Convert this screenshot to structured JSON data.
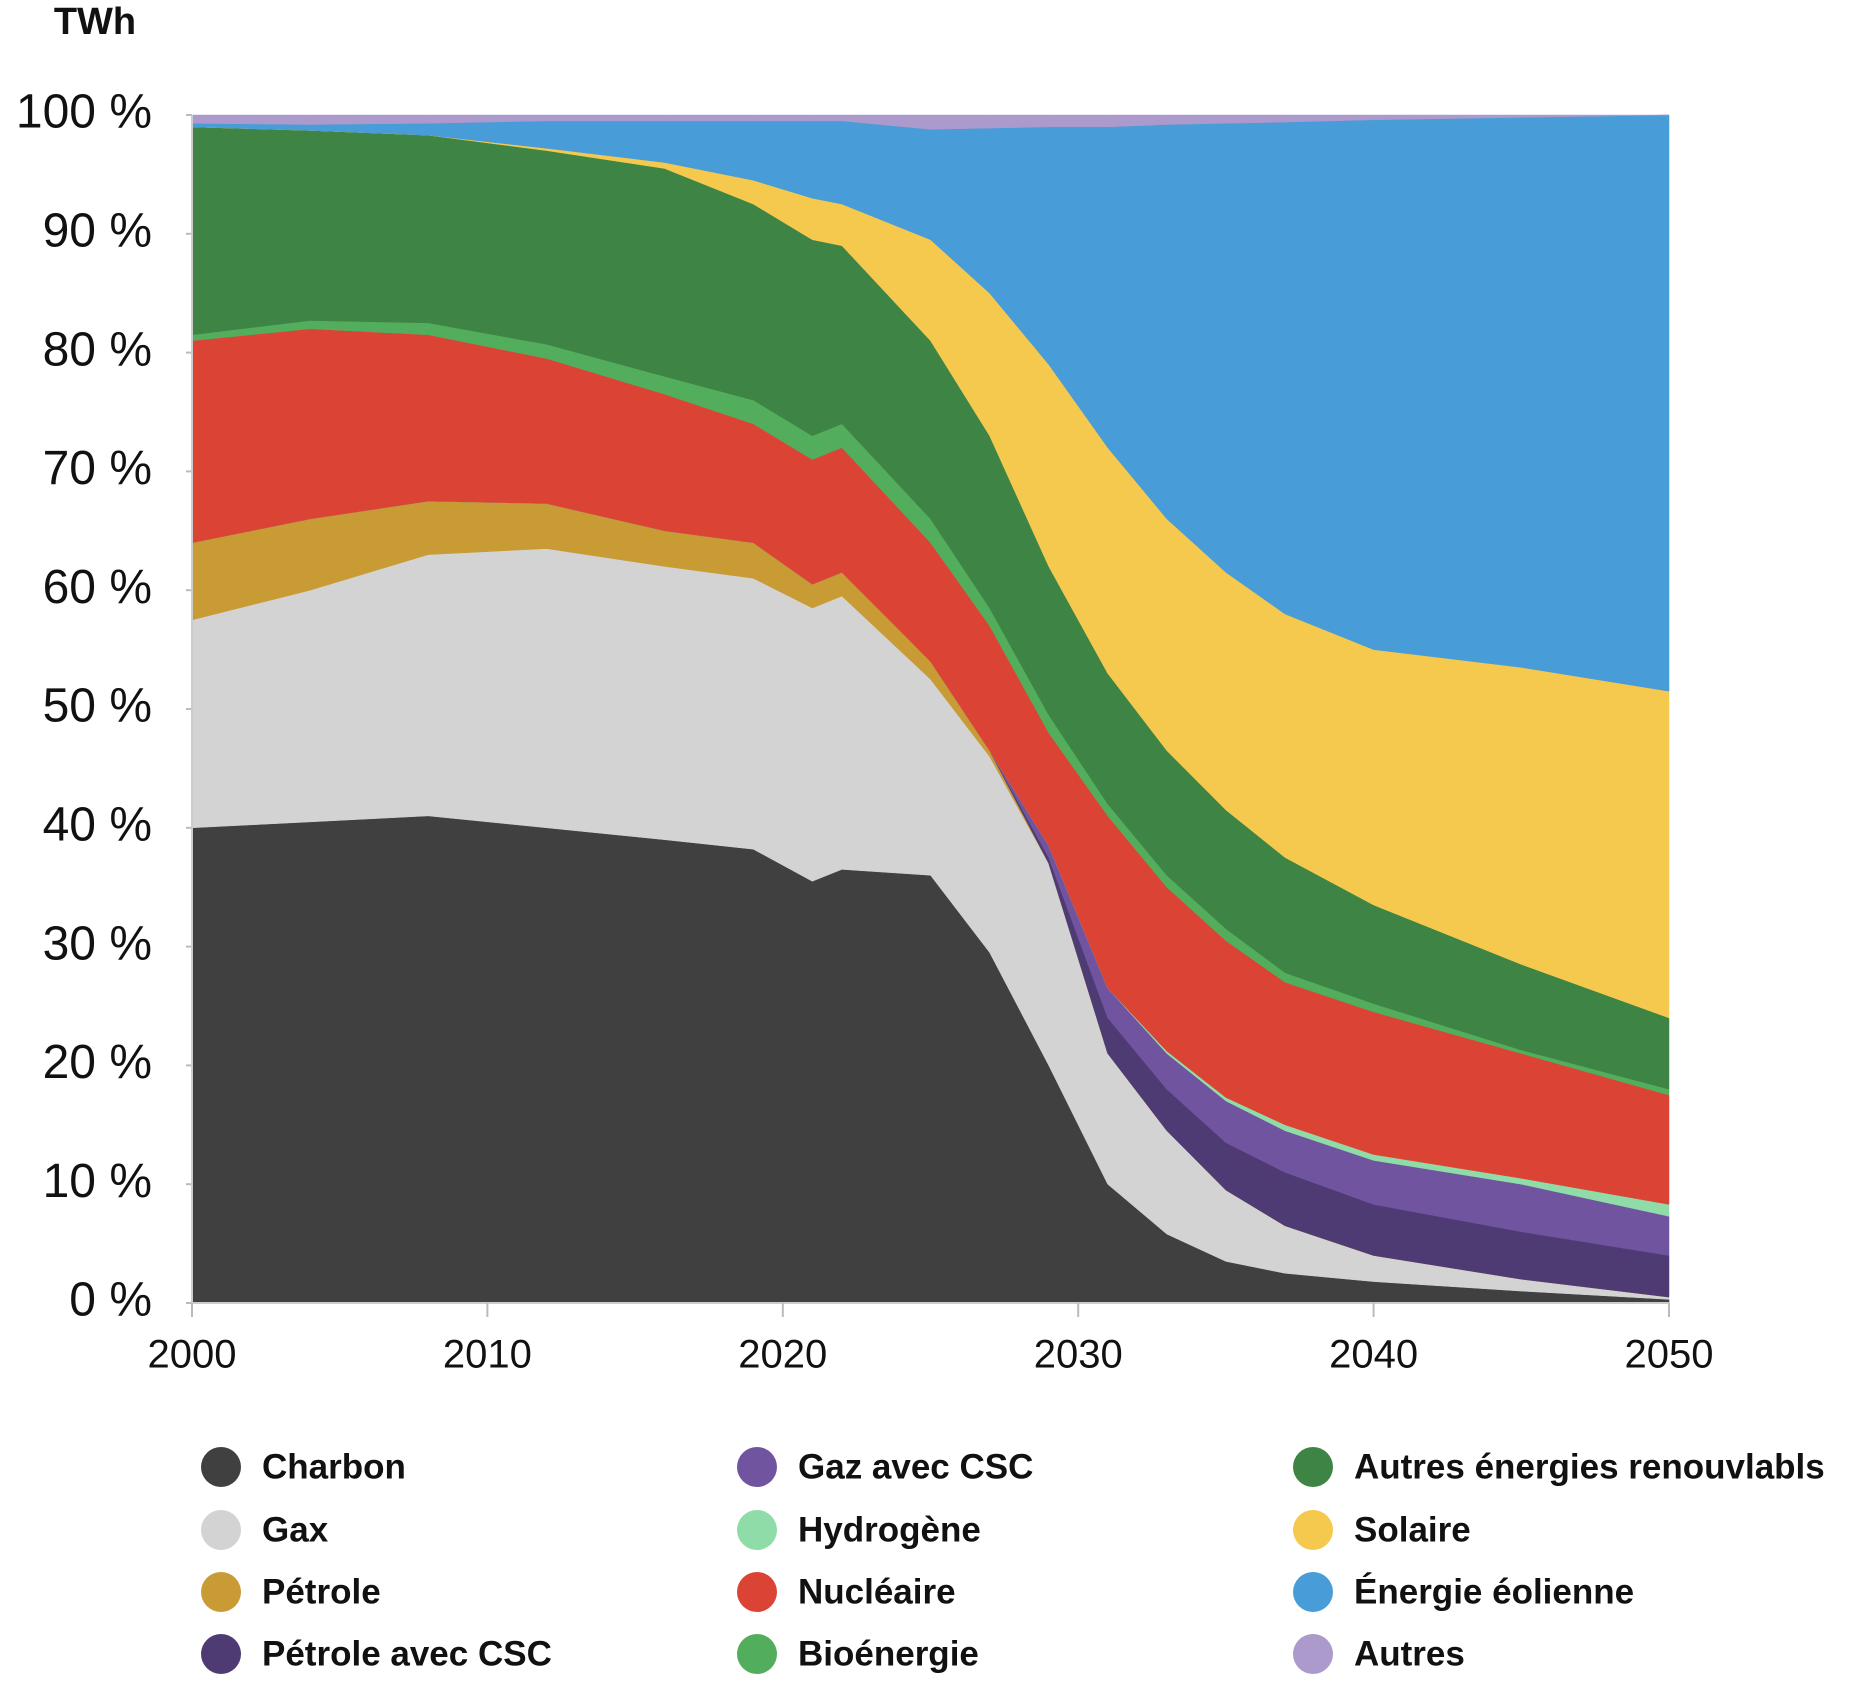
{
  "chart_data": {
    "type": "stacked_area",
    "y_axis_title": "TWh",
    "x": [
      2000,
      2004,
      2008,
      2012,
      2016,
      2019,
      2021,
      2022,
      2025,
      2027,
      2029,
      2031,
      2033,
      2035,
      2037,
      2040,
      2045,
      2050
    ],
    "xlim": [
      2000,
      2050
    ],
    "xticks": [
      2000,
      2010,
      2020,
      2030,
      2040,
      2050
    ],
    "ylim": [
      0,
      100
    ],
    "yticks": [
      {
        "value": 0,
        "label": "0 %"
      },
      {
        "value": 10,
        "label": "10 %"
      },
      {
        "value": 20,
        "label": "20 %"
      },
      {
        "value": 30,
        "label": "30 %"
      },
      {
        "value": 40,
        "label": "40 %"
      },
      {
        "value": 50,
        "label": "50 %"
      },
      {
        "value": 60,
        "label": "60 %"
      },
      {
        "value": 70,
        "label": "70 %"
      },
      {
        "value": 80,
        "label": "80 %"
      },
      {
        "value": 90,
        "label": "90 %"
      },
      {
        "value": 100,
        "label": "100 %"
      }
    ],
    "series": [
      {
        "name": "Charbon",
        "color": "#404040",
        "values": [
          40,
          40.5,
          41,
          40,
          39,
          38.2,
          35.5,
          36.5,
          36,
          29.5,
          20,
          10,
          5.8,
          3.5,
          2.5,
          1.8,
          1,
          0.3
        ]
      },
      {
        "name": "Gax",
        "color": "#d3d3d3",
        "values": [
          17.5,
          19.5,
          22,
          23.5,
          23,
          22.8,
          23,
          23,
          16.5,
          16.5,
          17,
          11,
          8.7,
          6,
          4,
          2.2,
          1,
          0.2
        ]
      },
      {
        "name": "Pétrole",
        "color": "#c89b35",
        "values": [
          6.5,
          6,
          4.5,
          3.8,
          3,
          3,
          2,
          2,
          1.5,
          0.5,
          0,
          0,
          0,
          0,
          0,
          0,
          0,
          0
        ]
      },
      {
        "name": "Pétrole avec CSC",
        "color": "#4f3b74",
        "values": [
          0,
          0,
          0,
          0,
          0,
          0,
          0,
          0,
          0,
          0,
          0.5,
          3,
          3.5,
          4,
          4.5,
          4.3,
          4,
          3.5
        ]
      },
      {
        "name": "Gaz avec CSC",
        "color": "#7154a0",
        "values": [
          0,
          0,
          0,
          0,
          0,
          0,
          0,
          0,
          0,
          0,
          1,
          2.5,
          3,
          3.5,
          3.5,
          3.7,
          4,
          3.3
        ]
      },
      {
        "name": "Hydrogène",
        "color": "#8fdca8",
        "values": [
          0,
          0,
          0,
          0,
          0,
          0,
          0,
          0,
          0,
          0,
          0,
          0,
          0.2,
          0.3,
          0.5,
          0.5,
          0.5,
          1
        ]
      },
      {
        "name": "Nucléaire",
        "color": "#db4434",
        "values": [
          17,
          16,
          14,
          12.2,
          11.5,
          10,
          10.5,
          10.5,
          10,
          10.5,
          9.5,
          14.5,
          13.8,
          13.2,
          12,
          12,
          10.5,
          9.2
        ]
      },
      {
        "name": "Bioénergie",
        "color": "#52ae5c",
        "values": [
          0.5,
          0.7,
          1,
          1.2,
          1.5,
          2,
          2,
          2,
          2,
          1.5,
          1.5,
          1,
          1,
          1,
          0.8,
          0.7,
          0.3,
          0.5
        ]
      },
      {
        "name": "Autres énergies renouvlabls",
        "color": "#3e8444",
        "values": [
          17.5,
          16,
          15.8,
          16.3,
          17.5,
          16.5,
          16.5,
          15,
          15,
          14.5,
          12.5,
          11,
          10.5,
          10,
          9.7,
          8.3,
          7.2,
          6
        ]
      },
      {
        "name": "Solaire",
        "color": "#f5c94e",
        "values": [
          0,
          0,
          0,
          0.2,
          0.5,
          2,
          3.5,
          3.5,
          8.5,
          12,
          17,
          19,
          19.5,
          20,
          20.5,
          21.5,
          25,
          27.5
        ]
      },
      {
        "name": "Énergie éolienne",
        "color": "#489cd8",
        "values": [
          0.3,
          0.5,
          1,
          2.3,
          3.5,
          5,
          6.5,
          7,
          9.3,
          13.9,
          20,
          27,
          33.2,
          37.8,
          41.4,
          44.6,
          46.3,
          48.5
        ]
      },
      {
        "name": "Autres",
        "color": "#ab9acb",
        "values": [
          0.7,
          0.8,
          0.7,
          0.5,
          0.5,
          0.5,
          0.5,
          0.5,
          1.2,
          1.1,
          1,
          1,
          0.8,
          0.7,
          0.6,
          0.4,
          0.2,
          0
        ]
      }
    ]
  }
}
